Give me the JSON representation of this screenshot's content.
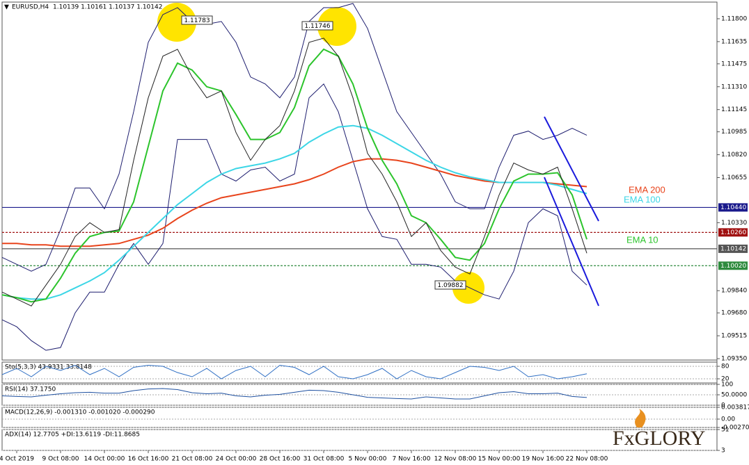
{
  "logo": "FxGLORY",
  "chart_data": [
    {
      "type": "line",
      "symbol": "EURUSD,H4",
      "ohlc": "1.10139 1.10161 1.10137 1.10142",
      "annotations": [
        "1.11783",
        "1.11746",
        "1.09882"
      ],
      "categories": [
        null,
        "4 Oct 2019",
        null,
        null,
        "9 Oct 08:00",
        null,
        null,
        "14 Oct 00:00",
        null,
        null,
        "16 Oct 16:00",
        null,
        null,
        "21 Oct 08:00",
        null,
        null,
        "24 Oct 00:00",
        null,
        null,
        "28 Oct 16:00",
        null,
        null,
        "31 Oct 08:00",
        null,
        null,
        "5 Nov 00:00",
        null,
        null,
        "7 Nov 16:00",
        null,
        null,
        "12 Nov 08:00",
        null,
        null,
        "15 Nov 00:00",
        null,
        null,
        "19 Nov 16:00",
        null,
        null,
        "22 Nov 08:00"
      ],
      "ylim": [
        1.0934,
        1.1192
      ],
      "yticks": [
        {
          "value": 1.118,
          "label": "1.11800"
        },
        {
          "value": 1.11635,
          "label": "1.11635"
        },
        {
          "value": 1.11475,
          "label": "1.11475"
        },
        {
          "value": 1.1131,
          "label": "1.11310"
        },
        {
          "value": 1.11145,
          "label": "1.11145"
        },
        {
          "value": 1.10985,
          "label": "1.10985"
        },
        {
          "value": 1.1082,
          "label": "1.10820"
        },
        {
          "value": 1.10655,
          "label": "1.10655"
        },
        {
          "value": 1.1033,
          "label": "1.10330"
        },
        {
          "value": 1.0984,
          "label": "1.09840"
        },
        {
          "value": 1.0968,
          "label": "1.09680"
        },
        {
          "value": 1.09515,
          "label": "1.09515"
        },
        {
          "value": 1.0935,
          "label": "1.09350"
        }
      ],
      "levels": [
        {
          "value": 1.1044,
          "label": "1.10440",
          "color": "#1a1a8c",
          "dashed": false
        },
        {
          "value": 1.1026,
          "label": "1.10260",
          "color": "#a01010",
          "dashed": true
        },
        {
          "value": 1.10142,
          "label": "1.10142",
          "color": "#555555",
          "dashed": false
        },
        {
          "value": 1.1002,
          "label": "1.10020",
          "color": "#2e8b3e",
          "dashed": true
        }
      ],
      "series": [
        {
          "color": "#1c1c6e",
          "width": 1,
          "values": [
            1.1008,
            1.1003,
            1.0998,
            1.1003,
            1.1028,
            1.1058,
            1.1058,
            1.1043,
            1.1068,
            1.1113,
            1.1163,
            1.1183,
            1.1188,
            1.1178,
            1.1176,
            1.1178,
            1.1163,
            1.1138,
            1.1133,
            1.1123,
            1.1138,
            1.1178,
            1.1188,
            1.1188,
            1.1191,
            1.1173,
            1.1143,
            1.1113,
            1.1098,
            1.1083,
            1.1068,
            1.1048,
            1.1043,
            1.1043,
            1.1073,
            1.1096,
            1.1099,
            1.1093,
            1.1096,
            1.1101,
            1.1096
          ]
        },
        {
          "color": "#1c1c6e",
          "width": 1,
          "values": [
            1.0963,
            1.0958,
            1.0948,
            1.0941,
            1.0943,
            1.0968,
            1.0983,
            1.0983,
            1.1003,
            1.1018,
            1.1003,
            1.1018,
            1.1093,
            1.1093,
            1.1093,
            1.1068,
            1.1063,
            1.1071,
            1.1073,
            1.1063,
            1.1068,
            1.1123,
            1.1133,
            1.1113,
            1.1078,
            1.1043,
            1.1023,
            1.1021,
            1.1003,
            1.1003,
            1.1001,
            1.0991,
            1.0986,
            1.0981,
            1.0978,
            1.0998,
            1.1033,
            1.1043,
            1.1038,
            1.0998,
            1.0988
          ]
        },
        {
          "name": "EMA 200",
          "color": "#e8441c",
          "width": 2,
          "values": [
            1.1018,
            1.1018,
            1.1017,
            1.1017,
            1.1016,
            1.1016,
            1.1016,
            1.1017,
            1.1018,
            1.1021,
            1.1024,
            1.1029,
            1.1036,
            1.1042,
            1.1047,
            1.1051,
            1.1053,
            1.1055,
            1.1057,
            1.1059,
            1.1061,
            1.1064,
            1.1068,
            1.1073,
            1.1077,
            1.1079,
            1.1079,
            1.1078,
            1.1076,
            1.1073,
            1.107,
            1.1067,
            1.1065,
            1.1063,
            1.1062,
            1.1062,
            1.1062,
            1.1062,
            1.1061,
            1.106,
            1.1059
          ]
        },
        {
          "name": "EMA 100",
          "color": "#3cd6e6",
          "width": 2,
          "values": [
            1.0981,
            1.0979,
            1.0978,
            1.0978,
            1.0981,
            1.0986,
            1.0991,
            1.0997,
            1.1006,
            1.1016,
            1.1026,
            1.1036,
            1.1046,
            1.1054,
            1.1062,
            1.1068,
            1.1072,
            1.1074,
            1.1076,
            1.1079,
            1.1083,
            1.1091,
            1.1097,
            1.1102,
            1.1103,
            1.1101,
            1.1096,
            1.109,
            1.1084,
            1.1078,
            1.1073,
            1.1069,
            1.1066,
            1.1064,
            1.1062,
            1.1062,
            1.1062,
            1.1062,
            1.106,
            1.1057,
            1.1054
          ]
        },
        {
          "name": "EMA 10",
          "color": "#2cc42c",
          "width": 2,
          "values": [
            1.0981,
            1.0979,
            1.0976,
            1.0978,
            1.0993,
            1.1011,
            1.1023,
            1.1026,
            1.1027,
            1.1048,
            1.1088,
            1.1128,
            1.1148,
            1.1143,
            1.1131,
            1.1128,
            1.1111,
            1.1093,
            1.1093,
            1.1098,
            1.1116,
            1.1146,
            1.1158,
            1.1153,
            1.1133,
            1.1101,
            1.1078,
            1.1061,
            1.1038,
            1.1033,
            1.1021,
            1.1008,
            1.1006,
            1.1018,
            1.1043,
            1.1063,
            1.1068,
            1.1068,
            1.1069,
            1.1053,
            1.1021
          ]
        },
        {
          "color": "#222222",
          "width": 1,
          "values": [
            1.0983,
            1.0978,
            1.0973,
            1.0988,
            1.1003,
            1.1023,
            1.1033,
            1.1026,
            1.1028,
            1.1078,
            1.1123,
            1.1153,
            1.1158,
            1.1138,
            1.1123,
            1.1128,
            1.1098,
            1.1078,
            1.1093,
            1.1103,
            1.1128,
            1.1163,
            1.1166,
            1.1153,
            1.1123,
            1.1083,
            1.1068,
            1.1048,
            1.1023,
            1.1033,
            1.1013,
            1.1001,
            1.0996,
            1.1023,
            1.1053,
            1.1076,
            1.1071,
            1.1068,
            1.1073,
            1.1043,
            1.1011
          ]
        }
      ]
    },
    {
      "type": "line",
      "title": "Sto(5,3,3) 43.9331 33.8148",
      "ylim": [
        0,
        100
      ],
      "yticks": [
        80,
        20
      ],
      "series": [
        {
          "color": "#2f6fc4",
          "width": 1,
          "values": [
            40,
            70,
            30,
            80,
            60,
            85,
            40,
            70,
            30,
            75,
            85,
            80,
            50,
            30,
            70,
            20,
            60,
            80,
            30,
            85,
            75,
            40,
            80,
            30,
            20,
            40,
            70,
            20,
            60,
            30,
            20,
            50,
            80,
            75,
            60,
            80,
            30,
            40,
            20,
            30,
            44
          ]
        }
      ]
    },
    {
      "type": "line",
      "title": "RSI(14) 37.1750",
      "ylim": [
        0,
        100
      ],
      "yticks": [
        100,
        {
          "value": 50,
          "label": "50.0000"
        },
        0
      ],
      "series": [
        {
          "color": "#1e50a0",
          "width": 1,
          "values": [
            45,
            42,
            40,
            48,
            55,
            60,
            62,
            58,
            58,
            70,
            78,
            80,
            75,
            60,
            55,
            58,
            45,
            40,
            48,
            52,
            62,
            72,
            70,
            62,
            50,
            38,
            35,
            32,
            30,
            40,
            35,
            30,
            30,
            45,
            60,
            65,
            55,
            55,
            58,
            42,
            37
          ]
        }
      ]
    },
    {
      "type": "line",
      "title": "MACD(12,26,9) -0.001310 -0.001020 -0.000290",
      "ylim": [
        -0.002708,
        0.003817
      ],
      "yticks": [
        {
          "value": 0.003817,
          "label": "0.003817"
        },
        {
          "value": 0,
          "label": "0.00"
        },
        {
          "value": -0.002708,
          "label": "-0.002708"
        }
      ]
    },
    {
      "type": "line",
      "title": "ADX(14) 12.7705 +DI:13.6119 -DI:11.8685",
      "ylim": [
        3,
        51
      ],
      "yticks": [
        51,
        3
      ]
    }
  ]
}
